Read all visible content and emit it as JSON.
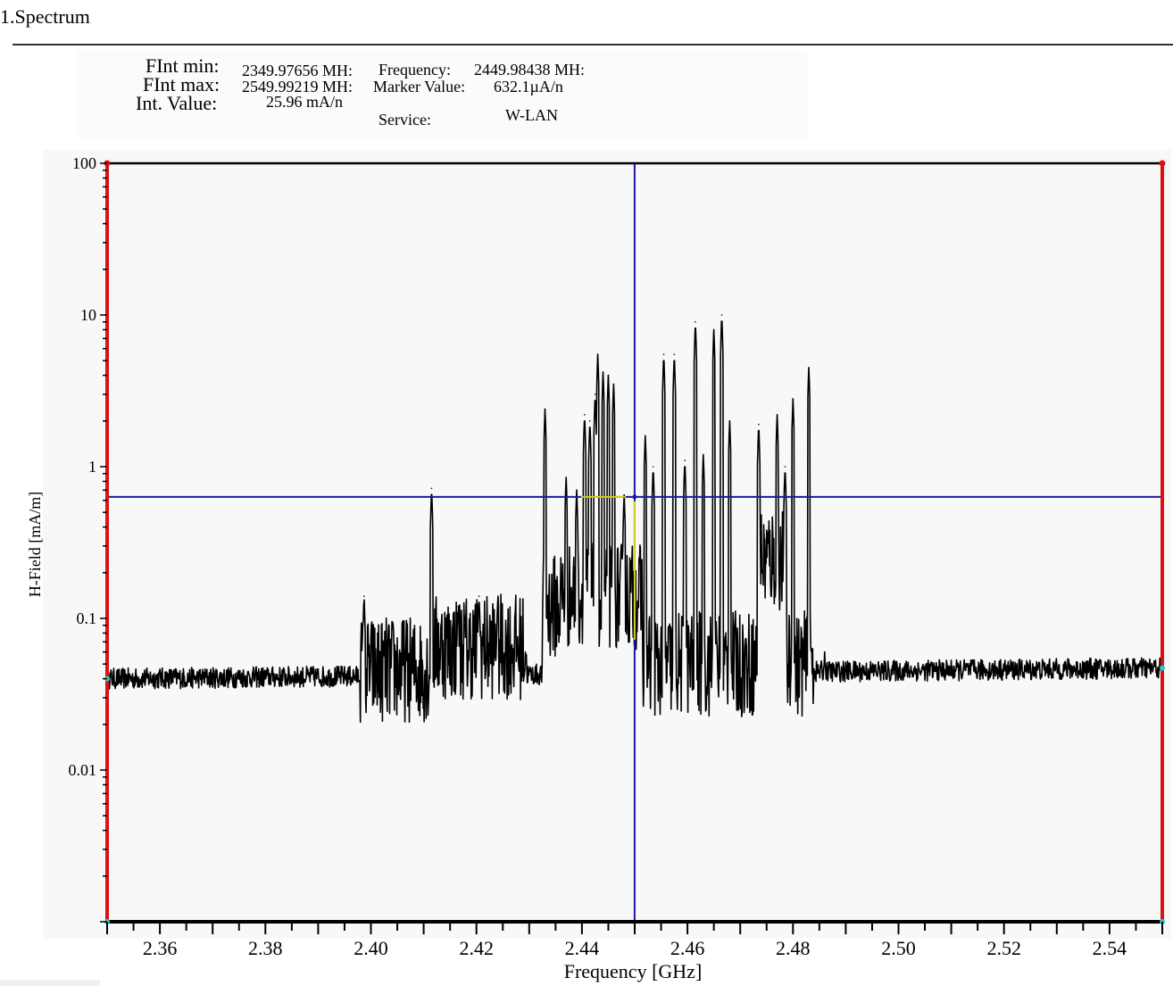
{
  "page": {
    "section_title": "1.Spectrum"
  },
  "info": {
    "fint_min_label": "FInt min:",
    "fint_min_value": "2349.97656 MH:",
    "fint_max_label": "FInt max:",
    "fint_max_value": "2549.99219 MH:",
    "int_value_label": "Int. Value:",
    "int_value_value": "25.96 mA/n",
    "frequency_label": "Frequency:",
    "frequency_value": "2449.98438 MH:",
    "marker_value_label": "Marker Value:",
    "marker_value_value": "632.1µA/n",
    "service_label": "Service:",
    "service_value": "W-LAN"
  },
  "colors": {
    "trace": "#000000",
    "marker": "#1a1aa0",
    "marker_highlight": "#ffff00",
    "band_edge": "#dd1111",
    "axis": "#000000"
  },
  "chart_data": {
    "type": "line",
    "xlabel": "Frequency [GHz]",
    "ylabel": "H-Field [mA/m]",
    "xlim": [
      2.35,
      2.55
    ],
    "ylim": [
      0.001,
      100
    ],
    "yscale": "log",
    "x_ticks": [
      "2.36",
      "2.38",
      "2.40",
      "2.42",
      "2.44",
      "2.46",
      "2.48",
      "2.50",
      "2.52",
      "2.54"
    ],
    "y_ticks": [
      "100",
      "10",
      "1",
      "0.1",
      "0.01"
    ],
    "y_tick_values": [
      100,
      10,
      1,
      0.1,
      0.01
    ],
    "marker": {
      "x": 2.44998438,
      "y": 0.6321
    },
    "band_edges": [
      2.34997656,
      2.54999219
    ],
    "baseline": {
      "start": 0.04,
      "end": 0.047
    },
    "noise_spans": [
      {
        "x": [
          2.398,
          2.411
        ],
        "level": 0.046
      },
      {
        "x": [
          2.412,
          2.4295
        ],
        "level": 0.065
      },
      {
        "x": [
          2.4325,
          2.436
        ],
        "level": 0.12
      },
      {
        "x": [
          2.436,
          2.4515
        ],
        "level": 0.14
      },
      {
        "x": [
          2.4515,
          2.473
        ],
        "level": 0.05
      },
      {
        "x": [
          2.4735,
          2.4785
        ],
        "level": 0.25
      },
      {
        "x": [
          2.4785,
          2.484
        ],
        "level": 0.05
      }
    ],
    "peaks": [
      {
        "x": 2.3987,
        "y": 0.14
      },
      {
        "x": 2.4115,
        "y": 0.72
      },
      {
        "x": 2.4165,
        "y": 0.12
      },
      {
        "x": 2.4205,
        "y": 0.14
      },
      {
        "x": 2.424,
        "y": 0.12
      },
      {
        "x": 2.433,
        "y": 2.4
      },
      {
        "x": 2.437,
        "y": 0.85
      },
      {
        "x": 2.439,
        "y": 0.7
      },
      {
        "x": 2.4405,
        "y": 2.2
      },
      {
        "x": 2.4415,
        "y": 2.0
      },
      {
        "x": 2.4425,
        "y": 3.0
      },
      {
        "x": 2.443,
        "y": 5.5
      },
      {
        "x": 2.444,
        "y": 4.2
      },
      {
        "x": 2.445,
        "y": 4.0
      },
      {
        "x": 2.446,
        "y": 3.5
      },
      {
        "x": 2.448,
        "y": 0.65
      },
      {
        "x": 2.452,
        "y": 1.6
      },
      {
        "x": 2.4535,
        "y": 1.0
      },
      {
        "x": 2.4555,
        "y": 5.5
      },
      {
        "x": 2.4575,
        "y": 5.5
      },
      {
        "x": 2.4595,
        "y": 1.1
      },
      {
        "x": 2.4615,
        "y": 9.0
      },
      {
        "x": 2.463,
        "y": 1.2
      },
      {
        "x": 2.465,
        "y": 8.0
      },
      {
        "x": 2.4665,
        "y": 10.0
      },
      {
        "x": 2.468,
        "y": 2.0
      },
      {
        "x": 2.4735,
        "y": 1.9
      },
      {
        "x": 2.477,
        "y": 2.2
      },
      {
        "x": 2.4785,
        "y": 1.0
      },
      {
        "x": 2.48,
        "y": 2.8
      },
      {
        "x": 2.483,
        "y": 4.5
      },
      {
        "x": 2.486,
        "y": 0.06
      }
    ]
  }
}
